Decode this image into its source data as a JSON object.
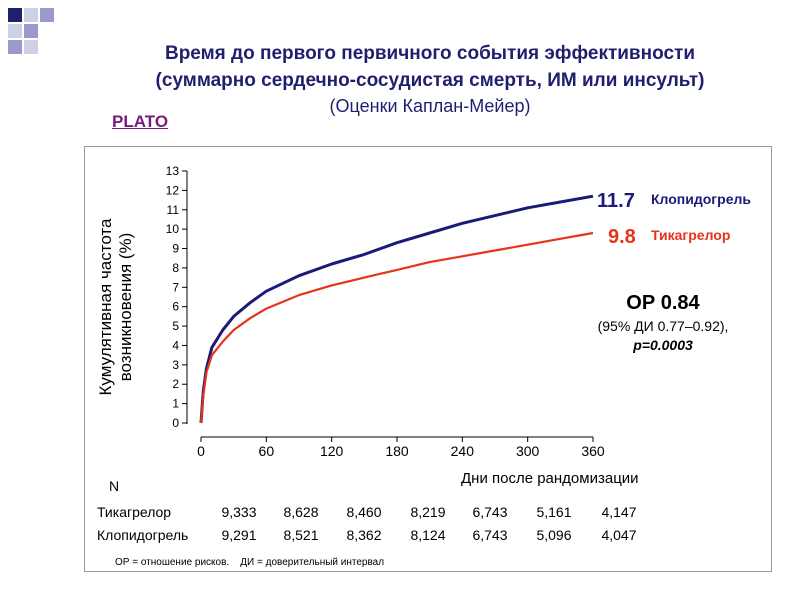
{
  "slide": {
    "title_line1": "Время до первого первичного события эффективности",
    "title_line2": "(суммарно сердечно-сосудистая смерть, ИМ или инсульт)",
    "title_line3": "(Оценки Каплан-Мейер)",
    "study_label": "PLATO",
    "accent_colors": [
      "#1f1f6e",
      "#9999cc",
      "#cfcfe6"
    ]
  },
  "chart_data": {
    "type": "line",
    "xlabel": "Дни после рандомизации",
    "ylabel_line1": "Кумулятивная частота",
    "ylabel_line2": "возникновения (%)",
    "xlim": [
      0,
      360
    ],
    "ylim": [
      0,
      13
    ],
    "x_ticks": [
      0,
      60,
      120,
      180,
      240,
      300,
      360
    ],
    "y_ticks": [
      0,
      1,
      2,
      3,
      4,
      5,
      6,
      7,
      8,
      9,
      10,
      11,
      12,
      13
    ],
    "grid": false,
    "series": [
      {
        "name": "Клопидогрель",
        "color": "#1a1a7a",
        "end_label": "11.7",
        "x": [
          0,
          2,
          5,
          10,
          20,
          30,
          45,
          60,
          90,
          120,
          150,
          180,
          210,
          240,
          270,
          300,
          330,
          360
        ],
        "y": [
          0,
          1.6,
          2.8,
          3.9,
          4.8,
          5.5,
          6.2,
          6.8,
          7.6,
          8.2,
          8.7,
          9.3,
          9.8,
          10.3,
          10.7,
          11.1,
          11.4,
          11.7
        ]
      },
      {
        "name": "Тикагрелор",
        "color": "#e8321c",
        "end_label": "9.8",
        "x": [
          0,
          2,
          5,
          10,
          20,
          30,
          45,
          60,
          90,
          120,
          150,
          180,
          210,
          240,
          270,
          300,
          330,
          360
        ],
        "y": [
          0,
          1.4,
          2.6,
          3.5,
          4.2,
          4.8,
          5.4,
          5.9,
          6.6,
          7.1,
          7.5,
          7.9,
          8.3,
          8.6,
          8.9,
          9.2,
          9.5,
          9.8
        ]
      }
    ],
    "annotations": {
      "hr": "ОР 0.84",
      "ci": "(95% ДИ 0.77–0.92),",
      "p": "p=0.0003"
    },
    "risk_table": {
      "header": "N",
      "rows": [
        {
          "label": "Тикагрелор",
          "values": [
            "9,333",
            "8,628",
            "8,460",
            "8,219",
            "6,743",
            "5,161",
            "4,147"
          ]
        },
        {
          "label": "Клопидогрель",
          "values": [
            "9,291",
            "8,521",
            "8,362",
            "8,124",
            "6,743",
            "5,096",
            "4,047"
          ]
        }
      ]
    },
    "footnote": "ОР = отношение рисков.    ДИ = доверительный интервал"
  }
}
